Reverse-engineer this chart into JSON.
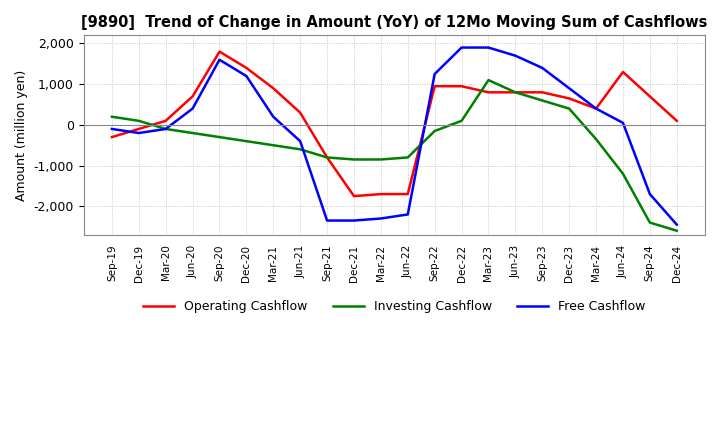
{
  "title": "[9890]  Trend of Change in Amount (YoY) of 12Mo Moving Sum of Cashflows",
  "ylabel": "Amount (million yen)",
  "x_labels": [
    "Sep-19",
    "Dec-19",
    "Mar-20",
    "Jun-20",
    "Sep-20",
    "Dec-20",
    "Mar-21",
    "Jun-21",
    "Sep-21",
    "Dec-21",
    "Mar-22",
    "Jun-22",
    "Sep-22",
    "Dec-22",
    "Mar-23",
    "Jun-23",
    "Sep-23",
    "Dec-23",
    "Mar-24",
    "Jun-24",
    "Sep-24",
    "Dec-24"
  ],
  "operating": [
    -300,
    -100,
    100,
    700,
    1800,
    1400,
    900,
    300,
    -800,
    -1750,
    -1700,
    -1700,
    950,
    950,
    800,
    800,
    800,
    650,
    400,
    1300,
    700,
    100
  ],
  "investing": [
    200,
    100,
    -100,
    -200,
    -300,
    -400,
    -500,
    -600,
    -800,
    -850,
    -850,
    -800,
    -150,
    100,
    1100,
    800,
    600,
    400,
    -350,
    -1200,
    -2400,
    -2600
  ],
  "free": [
    -100,
    -200,
    -100,
    400,
    1600,
    1200,
    200,
    -400,
    -2350,
    -2350,
    -2300,
    -2200,
    1250,
    1900,
    1900,
    1700,
    1400,
    900,
    400,
    50,
    -1700,
    -2450
  ],
  "colors": {
    "operating": "#ff0000",
    "investing": "#008000",
    "free": "#0000ff"
  },
  "ylim": [
    -2700,
    2200
  ],
  "yticks": [
    -2000,
    -1000,
    0,
    1000,
    2000
  ],
  "legend_labels": [
    "Operating Cashflow",
    "Investing Cashflow",
    "Free Cashflow"
  ],
  "background_color": "#ffffff",
  "grid_color": "#aaaaaa"
}
